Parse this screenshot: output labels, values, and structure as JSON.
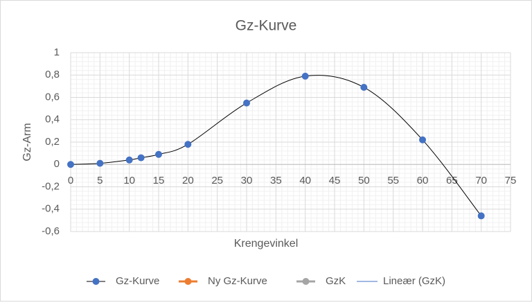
{
  "chart_data": {
    "type": "scatter",
    "title": "Gz-Kurve",
    "x_label": "Krengevinkel",
    "y_label": "Gz-Arm",
    "x": [
      0,
      5,
      10,
      12,
      15,
      20,
      30,
      40,
      50,
      60,
      70
    ],
    "series": [
      {
        "name": "Gz-Kurve",
        "color": "#4472c4",
        "line_color": "#000000",
        "smooth": true,
        "values": [
          0,
          0.01,
          0.04,
          0.06,
          0.09,
          0.18,
          0.55,
          0.79,
          0.69,
          0.22,
          -0.46
        ]
      },
      {
        "name": "Ny Gz-Kurve",
        "color": "#ed7d31",
        "values": []
      },
      {
        "name": "GzK",
        "color": "#a5a5a5",
        "values": []
      },
      {
        "name": "Lineær (GzK)",
        "color": "#4472c4",
        "trendline": true,
        "values": []
      }
    ],
    "xlim": [
      0,
      75
    ],
    "xticks": [
      0,
      5,
      10,
      15,
      20,
      25,
      30,
      35,
      40,
      45,
      50,
      55,
      60,
      65,
      70,
      75
    ],
    "ylim": [
      -0.6,
      1
    ],
    "yticks": [
      {
        "value": -0.6,
        "label": "-0,6"
      },
      {
        "value": -0.4,
        "label": "-0,4"
      },
      {
        "value": -0.2,
        "label": "-0,2"
      },
      0,
      {
        "value": 0.2,
        "label": "0,2"
      },
      {
        "value": 0.4,
        "label": "0,4"
      },
      {
        "value": 0.6,
        "label": "0,6"
      },
      {
        "value": 0.8,
        "label": "0,8"
      },
      1
    ],
    "grid": true,
    "minor_grid": true,
    "legend": "bottom"
  }
}
